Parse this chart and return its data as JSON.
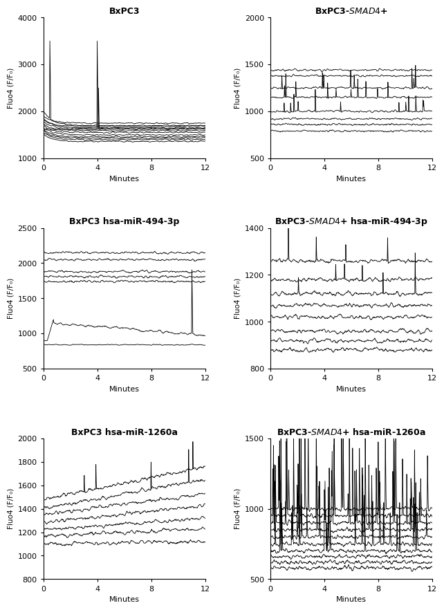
{
  "plots": [
    {
      "title": "BxPC3",
      "smad4_italic": false,
      "ylabel": "Fluo4 (F/F₀)",
      "xlabel": "Minutes",
      "ylim": [
        1000,
        4000
      ],
      "yticks": [
        1000,
        2000,
        3000,
        4000
      ],
      "xticks": [
        0,
        4,
        8,
        12
      ],
      "xlim": [
        0,
        12
      ],
      "trace_type": "bxpc3_control"
    },
    {
      "title": "BxPC3-SMAD4+",
      "smad4_italic": true,
      "ylabel": "Fluo4 (F/F₀)",
      "xlabel": "Minutes",
      "ylim": [
        500,
        2000
      ],
      "yticks": [
        500,
        1000,
        1500,
        2000
      ],
      "xticks": [
        0,
        4,
        8,
        12
      ],
      "xlim": [
        0,
        12
      ],
      "trace_type": "bxpc3_smad4_control"
    },
    {
      "title": "BxPC3 hsa-miR-494-3p",
      "smad4_italic": false,
      "ylabel": "Fluo4 (F/F₀)",
      "xlabel": "Minutes",
      "ylim": [
        500,
        2500
      ],
      "yticks": [
        500,
        1000,
        1500,
        2000,
        2500
      ],
      "xticks": [
        0,
        4,
        8,
        12
      ],
      "xlim": [
        0,
        12
      ],
      "trace_type": "bxpc3_mir494"
    },
    {
      "title": "BxPC3-SMAD4+ hsa-miR-494-3p",
      "smad4_italic": true,
      "ylabel": "Fluo4 (F/F₀)",
      "xlabel": "Minutes",
      "ylim": [
        800,
        1400
      ],
      "yticks": [
        800,
        1000,
        1200,
        1400
      ],
      "xticks": [
        0,
        4,
        8,
        12
      ],
      "xlim": [
        0,
        12
      ],
      "trace_type": "bxpc3_smad4_mir494"
    },
    {
      "title": "BxPC3 hsa-miR-1260a",
      "smad4_italic": false,
      "ylabel": "Fluo4 (F/F₀)",
      "xlabel": "Minutes",
      "ylim": [
        800,
        2000
      ],
      "yticks": [
        800,
        1000,
        1200,
        1400,
        1600,
        1800,
        2000
      ],
      "xticks": [
        0,
        4,
        8,
        12
      ],
      "xlim": [
        0,
        12
      ],
      "trace_type": "bxpc3_mir1260a"
    },
    {
      "title": "BxPC3-SMAD4+ hsa-miR-1260a",
      "smad4_italic": true,
      "ylabel": "Fluo4 (F/F₀)",
      "xlabel": "Minutes",
      "ylim": [
        500,
        1500
      ],
      "yticks": [
        500,
        1000,
        1500
      ],
      "xticks": [
        0,
        4,
        8,
        12
      ],
      "xlim": [
        0,
        12
      ],
      "trace_type": "bxpc3_smad4_mir1260a"
    }
  ],
  "line_color": "#000000",
  "line_width": 0.6,
  "background_color": "#ffffff",
  "fig_width": 6.5,
  "fig_height": 8.9
}
